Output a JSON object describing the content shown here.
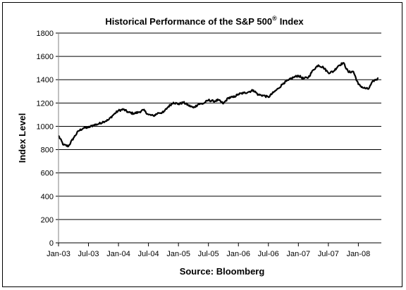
{
  "chart_data": {
    "type": "line",
    "title": "Historical Performance of the S&P 500",
    "title_superscript": "®",
    "title_suffix": "Index",
    "xlabel": "Source: Bloomberg",
    "ylabel": "Index Level",
    "ylim": [
      0,
      1800
    ],
    "yticks": [
      "0",
      "200",
      "400",
      "600",
      "800",
      "1000",
      "1200",
      "1400",
      "1600",
      "1800"
    ],
    "xticks": [
      "Jan-03",
      "Jul-03",
      "Jan-04",
      "Jul-04",
      "Jan-05",
      "Jul-05",
      "Jan-06",
      "Jul-06",
      "Jan-07",
      "Jul-07",
      "Jan-08"
    ],
    "grid": "horizontal",
    "legend": "none",
    "series": [
      {
        "x": [
          "2003-01",
          "2003-02",
          "2003-03",
          "2003-04",
          "2003-05",
          "2003-06",
          "2003-07",
          "2003-08",
          "2003-09",
          "2003-10",
          "2003-11",
          "2003-12",
          "2004-01",
          "2004-02",
          "2004-03",
          "2004-04",
          "2004-05",
          "2004-06",
          "2004-07",
          "2004-08",
          "2004-09",
          "2004-10",
          "2004-11",
          "2004-12",
          "2005-01",
          "2005-02",
          "2005-03",
          "2005-04",
          "2005-05",
          "2005-06",
          "2005-07",
          "2005-08",
          "2005-09",
          "2005-10",
          "2005-11",
          "2005-12",
          "2006-01",
          "2006-02",
          "2006-03",
          "2006-04",
          "2006-05",
          "2006-06",
          "2006-07",
          "2006-08",
          "2006-09",
          "2006-10",
          "2006-11",
          "2006-12",
          "2007-01",
          "2007-02",
          "2007-03",
          "2007-04",
          "2007-05",
          "2007-06",
          "2007-07",
          "2007-08",
          "2007-09",
          "2007-10",
          "2007-11",
          "2007-12",
          "2008-01",
          "2008-02",
          "2008-03",
          "2008-04",
          "2008-05"
        ],
        "values": [
          920,
          840,
          830,
          900,
          960,
          985,
          990,
          1010,
          1020,
          1040,
          1055,
          1100,
          1135,
          1145,
          1120,
          1110,
          1120,
          1140,
          1100,
          1090,
          1115,
          1120,
          1170,
          1205,
          1190,
          1205,
          1180,
          1160,
          1190,
          1195,
          1225,
          1215,
          1225,
          1195,
          1245,
          1250,
          1275,
          1285,
          1295,
          1310,
          1270,
          1265,
          1250,
          1290,
          1325,
          1370,
          1395,
          1420,
          1435,
          1410,
          1420,
          1485,
          1525,
          1505,
          1460,
          1470,
          1520,
          1545,
          1465,
          1470,
          1360,
          1330,
          1320,
          1390,
          1410
        ]
      }
    ]
  }
}
